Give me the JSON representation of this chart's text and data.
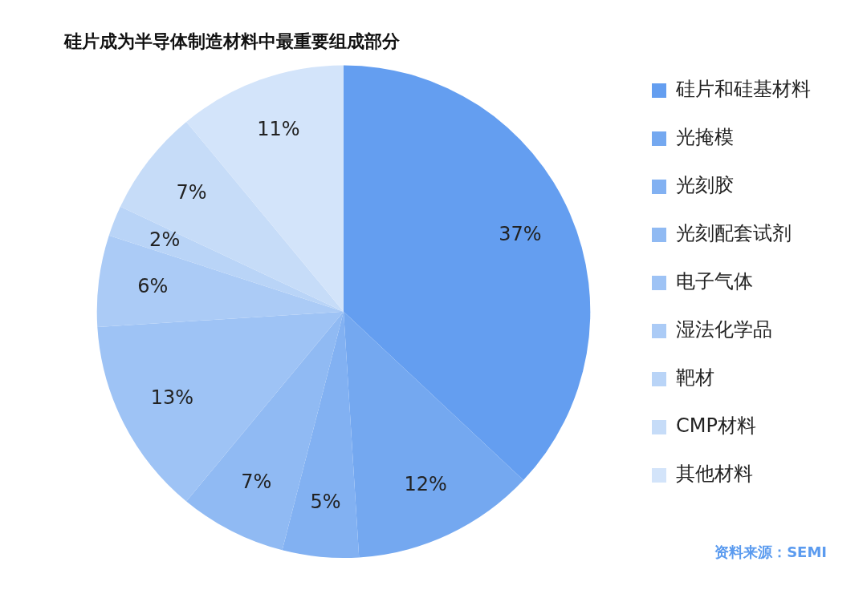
{
  "chart_data": {
    "type": "pie",
    "title": "硅片成为半导体制造材料中最重要组成部分",
    "categories": [
      "硅片和硅基材料",
      "光掩模",
      "光刻胶",
      "光刻配套试剂",
      "电子气体",
      "湿法化学品",
      "靶材",
      "CMP材料",
      "其他材料"
    ],
    "values": [
      37,
      12,
      5,
      7,
      13,
      6,
      2,
      7,
      11
    ],
    "value_labels": [
      "37%",
      "12%",
      "5%",
      "7%",
      "13%",
      "6%",
      "2%",
      "7%",
      "11%"
    ],
    "colors": [
      "#649ef0",
      "#74a8f0",
      "#82b1f2",
      "#90baf3",
      "#9ec3f5",
      "#abcbf6",
      "#b9d4f7",
      "#c6dcf8",
      "#d3e4fa"
    ],
    "legend": "right",
    "annotations": [
      "资料来源：SEMI"
    ]
  }
}
